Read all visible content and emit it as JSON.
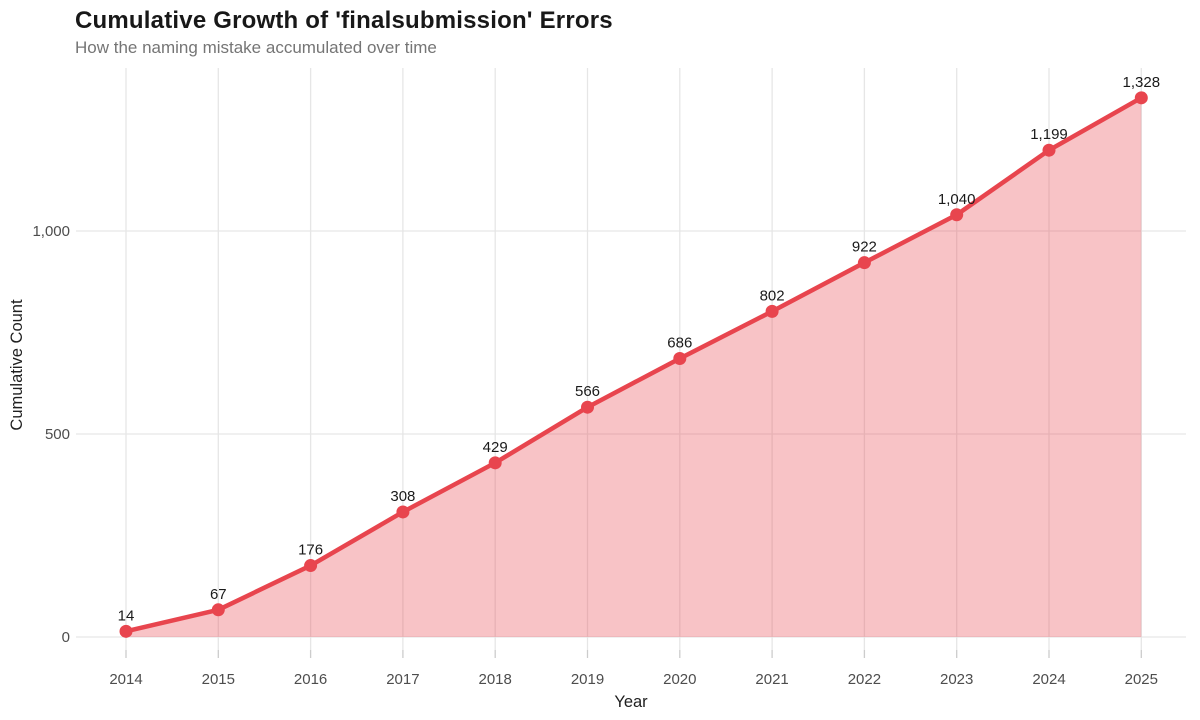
{
  "chart_data": {
    "type": "area",
    "title": "Cumulative Growth of 'finalsubmission' Errors",
    "subtitle": "How the naming mistake accumulated over time",
    "xlabel": "Year",
    "ylabel": "Cumulative Count",
    "x": [
      2014,
      2015,
      2016,
      2017,
      2018,
      2019,
      2020,
      2021,
      2022,
      2023,
      2024,
      2025
    ],
    "x_tick_labels": [
      "2014",
      "2015",
      "2016",
      "2017",
      "2018",
      "2019",
      "2020",
      "2021",
      "2022",
      "2023",
      "2024",
      "2025"
    ],
    "values": [
      14,
      67,
      176,
      308,
      429,
      566,
      686,
      802,
      922,
      1040,
      1199,
      1328
    ],
    "value_labels": [
      "14",
      "67",
      "176",
      "308",
      "429",
      "566",
      "686",
      "802",
      "922",
      "1,040",
      "1,199",
      "1,328"
    ],
    "yticks": [
      0,
      500,
      1000
    ],
    "ytick_labels": [
      "0",
      "500",
      "1,000"
    ],
    "ylim": [
      0,
      1400
    ],
    "grid": true,
    "legend": false,
    "colors": {
      "line": "#E8454E",
      "fill": "#E8454E",
      "fill_opacity": 0.32,
      "grid": "#e6e6e6",
      "tick": "#cccccc",
      "value_label": "#1a1a1a",
      "tick_text": "#4d4d4d",
      "axis_title": "#1f1f1f",
      "title": "#181818",
      "subtitle": "#757575",
      "background": "#ffffff"
    }
  }
}
